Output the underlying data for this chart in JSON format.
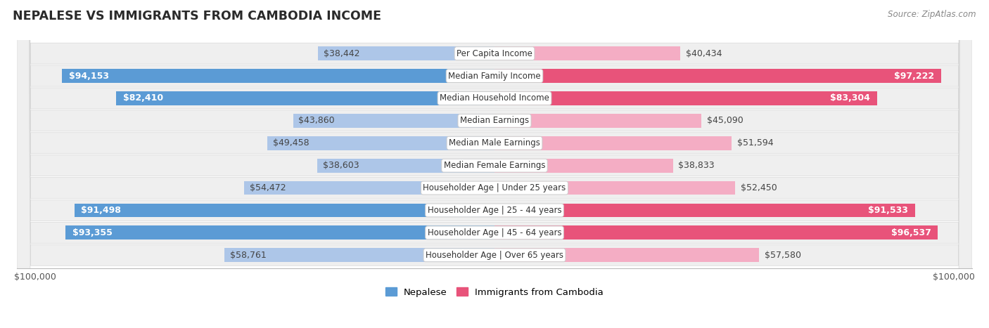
{
  "title": "NEPALESE VS IMMIGRANTS FROM CAMBODIA INCOME",
  "source": "Source: ZipAtlas.com",
  "categories": [
    "Per Capita Income",
    "Median Family Income",
    "Median Household Income",
    "Median Earnings",
    "Median Male Earnings",
    "Median Female Earnings",
    "Householder Age | Under 25 years",
    "Householder Age | 25 - 44 years",
    "Householder Age | 45 - 64 years",
    "Householder Age | Over 65 years"
  ],
  "nepalese": [
    38442,
    94153,
    82410,
    43860,
    49458,
    38603,
    54472,
    91498,
    93355,
    58761
  ],
  "cambodia": [
    40434,
    97222,
    83304,
    45090,
    51594,
    38833,
    52450,
    91533,
    96537,
    57580
  ],
  "nepalese_labels": [
    "$38,442",
    "$94,153",
    "$82,410",
    "$43,860",
    "$49,458",
    "$38,603",
    "$54,472",
    "$91,498",
    "$93,355",
    "$58,761"
  ],
  "cambodia_labels": [
    "$40,434",
    "$97,222",
    "$83,304",
    "$45,090",
    "$51,594",
    "$38,833",
    "$52,450",
    "$91,533",
    "$96,537",
    "$57,580"
  ],
  "max_val": 100000,
  "color_nepalese_light": "#adc6e8",
  "color_nepalese_dark": "#5b9bd5",
  "color_cambodia_light": "#f4adc4",
  "color_cambodia_dark": "#e8537a",
  "bar_height": 0.62,
  "row_bg": "#efefef",
  "row_border": "#d8d8d8",
  "bg_white": "#ffffff",
  "label_fontsize": 9.0,
  "cat_fontsize": 8.5,
  "title_fontsize": 12.5,
  "axis_label_fontsize": 9,
  "inside_threshold": 65000,
  "legend_fontsize": 9.5
}
